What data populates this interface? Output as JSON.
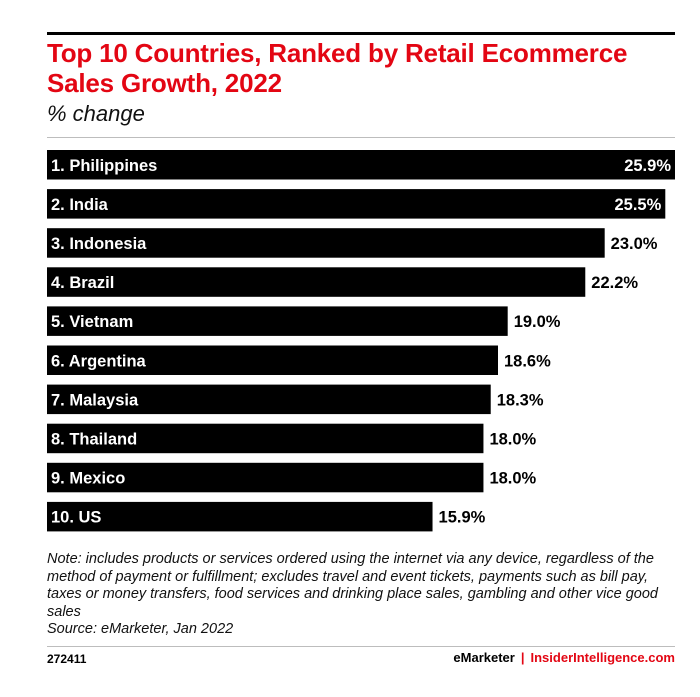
{
  "chart_data": {
    "type": "bar",
    "orientation": "horizontal",
    "title": "Top 10 Countries, Ranked by Retail Ecommerce Sales Growth, 2022",
    "subtitle": "% change",
    "categories": [
      "1. Philippines",
      "2. India",
      "3. Indonesia",
      "4. Brazil",
      "5. Vietnam",
      "6. Argentina",
      "7. Malaysia",
      "8. Thailand",
      "9. Mexico",
      "10. US"
    ],
    "values": [
      25.9,
      25.5,
      23.0,
      22.2,
      19.0,
      18.6,
      18.3,
      18.0,
      18.0,
      15.9
    ],
    "value_labels": [
      "25.9%",
      "25.5%",
      "23.0%",
      "22.2%",
      "19.0%",
      "18.6%",
      "18.3%",
      "18.0%",
      "18.0%",
      "15.9%"
    ],
    "grid": false,
    "bar_color": "#000000"
  },
  "note": "Note: includes products or services ordered using the internet via any device, regardless of the method of payment or fulfillment; excludes travel and event tickets, payments such as bill pay, taxes or money transfers, food services and drinking place sales, gambling and other vice good sales",
  "source": "Source: eMarketer, Jan 2022",
  "footer": {
    "chart_id": "272411",
    "brand": "eMarketer",
    "separator": "|",
    "site": "InsiderIntelligence.com"
  },
  "colors": {
    "title": "#e30613",
    "bar": "#000000",
    "bar_label": "#ffffff",
    "value_label": "#000000"
  }
}
